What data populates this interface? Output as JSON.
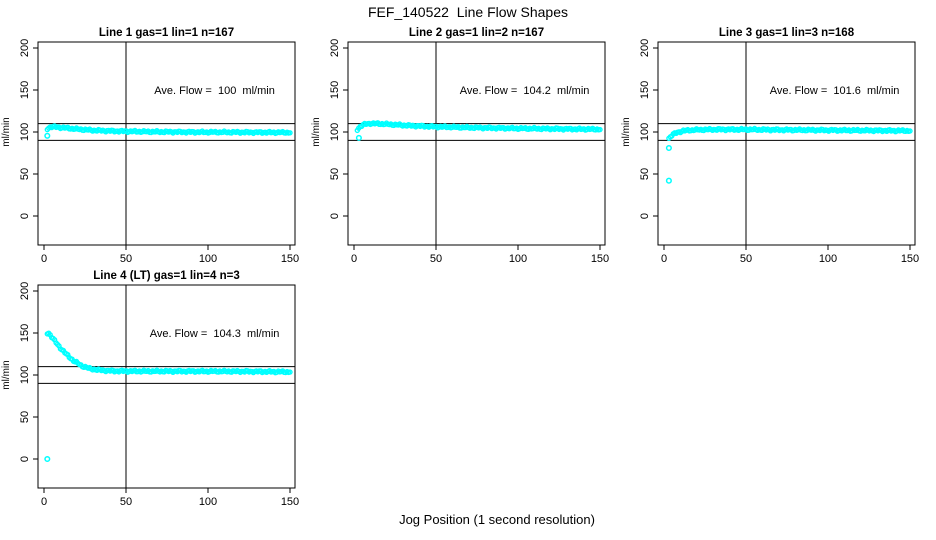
{
  "figure": {
    "title": "FEF_140522  Line Flow Shapes",
    "x_axis_title": "Jog Position (1 second resolution)"
  },
  "colors": {
    "points": "#00FFFF",
    "axis": "#000000",
    "background": "#FFFFFF"
  },
  "chart_data": [
    {
      "type": "scatter",
      "title": "Line 1 gas=1 lin=1 n=167",
      "annotation": "Ave. Flow =  100  ml/min",
      "ave_flow": 100,
      "n": 167,
      "ylabel": "ml/min",
      "x_ticks": [
        0,
        50,
        100,
        150
      ],
      "y_ticks": [
        0,
        50,
        100,
        150,
        200
      ],
      "ref_lines": {
        "horizontal": [
          90,
          110
        ],
        "vertical": [
          50
        ]
      },
      "x_start": 2,
      "x_end": 150,
      "curve_keypoints": [
        [
          2,
          104
        ],
        [
          4,
          106
        ],
        [
          7,
          106
        ],
        [
          12,
          105
        ],
        [
          20,
          103.5
        ],
        [
          30,
          102
        ],
        [
          45,
          101
        ],
        [
          65,
          100.3
        ],
        [
          90,
          99.9
        ],
        [
          120,
          99.7
        ],
        [
          150,
          99.4
        ]
      ],
      "outlier_points": [
        [
          2,
          95.5
        ]
      ]
    },
    {
      "type": "scatter",
      "title": "Line 2 gas=1 lin=2 n=167",
      "annotation": "Ave. Flow =  104.2  ml/min",
      "ave_flow": 104.2,
      "n": 167,
      "ylabel": "ml/min",
      "x_ticks": [
        0,
        50,
        100,
        150
      ],
      "y_ticks": [
        0,
        50,
        100,
        150,
        200
      ],
      "ref_lines": {
        "horizontal": [
          90,
          110
        ],
        "vertical": [
          50
        ]
      },
      "x_start": 2,
      "x_end": 150,
      "curve_keypoints": [
        [
          2,
          103
        ],
        [
          4,
          107
        ],
        [
          7,
          109.5
        ],
        [
          10,
          110.2
        ],
        [
          16,
          109.8
        ],
        [
          24,
          108.8
        ],
        [
          35,
          107.5
        ],
        [
          50,
          106.3
        ],
        [
          70,
          105.3
        ],
        [
          100,
          104.3
        ],
        [
          130,
          103.6
        ],
        [
          150,
          103.2
        ]
      ],
      "outlier_points": [
        [
          3,
          93
        ]
      ]
    },
    {
      "type": "scatter",
      "title": "Line 3 gas=1 lin=3 n=168",
      "annotation": "Ave. Flow =  101.6  ml/min",
      "ave_flow": 101.6,
      "n": 168,
      "ylabel": "ml/min",
      "x_ticks": [
        0,
        50,
        100,
        150
      ],
      "y_ticks": [
        0,
        50,
        100,
        150,
        200
      ],
      "ref_lines": {
        "horizontal": [
          90,
          110
        ],
        "vertical": [
          50
        ]
      },
      "x_start": 3,
      "x_end": 150,
      "curve_keypoints": [
        [
          3,
          92.5
        ],
        [
          5,
          96.5
        ],
        [
          8,
          99.5
        ],
        [
          12,
          101.5
        ],
        [
          18,
          102.5
        ],
        [
          30,
          103
        ],
        [
          50,
          103
        ],
        [
          75,
          102.5
        ],
        [
          100,
          102.2
        ],
        [
          125,
          101.8
        ],
        [
          150,
          101.5
        ]
      ],
      "outlier_points": [
        [
          3,
          81
        ],
        [
          3,
          42
        ]
      ]
    },
    {
      "type": "scatter",
      "title": "Line 4 (LT) gas=1 lin=4 n=3",
      "annotation": "Ave. Flow =  104.3  ml/min",
      "ave_flow": 104.3,
      "n": 3,
      "ylabel": "ml/min",
      "x_ticks": [
        0,
        50,
        100,
        150
      ],
      "y_ticks": [
        0,
        50,
        100,
        150,
        200
      ],
      "ref_lines": {
        "horizontal": [
          90,
          110
        ],
        "vertical": [
          50
        ]
      },
      "x_start": 2,
      "x_end": 150,
      "curve_keypoints": [
        [
          2,
          150
        ],
        [
          3,
          150
        ],
        [
          4,
          147
        ],
        [
          6,
          142
        ],
        [
          8,
          137
        ],
        [
          11,
          130
        ],
        [
          14,
          124
        ],
        [
          18,
          117
        ],
        [
          23,
          111
        ],
        [
          28,
          107.5
        ],
        [
          34,
          105.8
        ],
        [
          42,
          104.8
        ],
        [
          55,
          104.5
        ],
        [
          75,
          104.5
        ],
        [
          100,
          104.4
        ],
        [
          125,
          104.2
        ],
        [
          150,
          103.7
        ]
      ],
      "outlier_points": [
        [
          2,
          0
        ]
      ]
    }
  ]
}
